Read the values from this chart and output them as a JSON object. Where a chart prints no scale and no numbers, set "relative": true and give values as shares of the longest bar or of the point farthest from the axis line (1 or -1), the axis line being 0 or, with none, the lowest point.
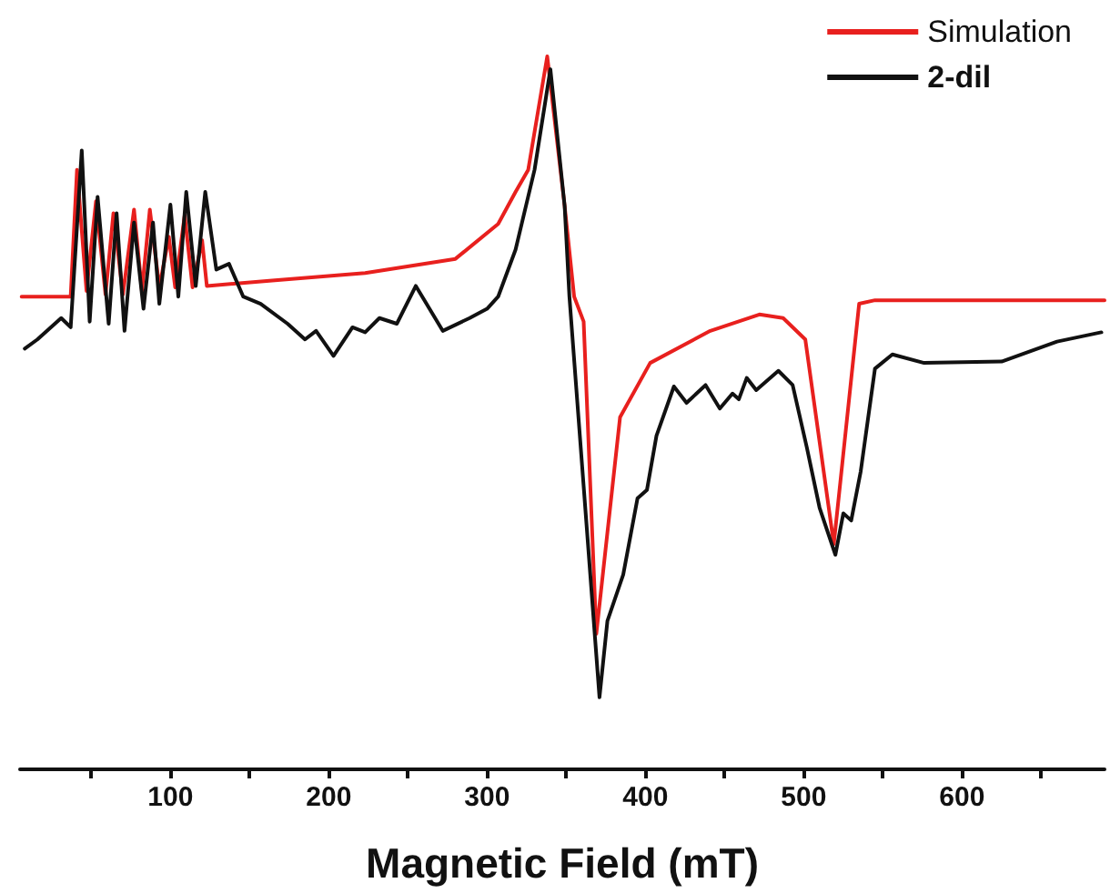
{
  "chart_data": {
    "type": "line",
    "xlabel": "Magnetic Field (mT)",
    "relative": true,
    "xlim": [
      5,
      690
    ],
    "xticks": [
      {
        "value": 50,
        "label": null
      },
      100,
      {
        "value": 150,
        "label": null
      },
      200,
      {
        "value": 250,
        "label": null
      },
      300,
      {
        "value": 350,
        "label": null
      },
      400,
      {
        "value": 450,
        "label": null
      },
      500,
      {
        "value": 550,
        "label": null
      },
      600,
      {
        "value": 650,
        "label": null
      }
    ],
    "legend": "top right",
    "grid": false,
    "marker": "none",
    "line_style": "solid",
    "tick_labels": "x",
    "series": [
      {
        "name": "Simulation",
        "color": "#e8201e",
        "x": [
          6,
          37,
          41,
          47,
          53,
          59,
          64,
          70,
          77,
          82,
          87,
          93,
          99,
          103,
          109,
          114,
          120,
          123,
          166,
          223,
          280,
          307,
          318,
          326,
          338,
          349,
          355,
          361,
          369,
          384,
          403,
          441,
          472,
          487,
          501,
          519,
          535,
          545,
          690
        ],
        "values": [
          0.663,
          0.663,
          0.841,
          0.671,
          0.797,
          0.666,
          0.78,
          0.666,
          0.785,
          0.671,
          0.785,
          0.676,
          0.747,
          0.676,
          0.777,
          0.676,
          0.742,
          0.678,
          0.686,
          0.696,
          0.716,
          0.765,
          0.81,
          0.841,
          1.0,
          0.79,
          0.663,
          0.628,
          0.19,
          0.494,
          0.57,
          0.615,
          0.638,
          0.633,
          0.603,
          0.316,
          0.653,
          0.658,
          0.658
        ]
      },
      {
        "name": "2-dil",
        "color": "#111111",
        "x": [
          8,
          16,
          31,
          37,
          44,
          49,
          54,
          61,
          66,
          71,
          77,
          83,
          89,
          93,
          100,
          105,
          110,
          116,
          122,
          129,
          137,
          146,
          157,
          174,
          185,
          192,
          203,
          215,
          223,
          232,
          243,
          255,
          272,
          289,
          300,
          307,
          318,
          330,
          340,
          349,
          352,
          361,
          371,
          376,
          386,
          395,
          401,
          407,
          418,
          426,
          438,
          447,
          455,
          459,
          464,
          470,
          484,
          493,
          502,
          510,
          520,
          525,
          530,
          536,
          545,
          556,
          576,
          625,
          660,
          688
        ],
        "values": [
          0.59,
          0.603,
          0.633,
          0.62,
          0.868,
          0.628,
          0.803,
          0.625,
          0.78,
          0.615,
          0.767,
          0.646,
          0.767,
          0.653,
          0.792,
          0.663,
          0.81,
          0.678,
          0.81,
          0.701,
          0.709,
          0.663,
          0.653,
          0.625,
          0.603,
          0.615,
          0.58,
          0.62,
          0.613,
          0.633,
          0.625,
          0.678,
          0.615,
          0.633,
          0.646,
          0.663,
          0.729,
          0.841,
          0.982,
          0.79,
          0.663,
          0.397,
          0.101,
          0.208,
          0.273,
          0.38,
          0.392,
          0.468,
          0.537,
          0.514,
          0.539,
          0.506,
          0.527,
          0.519,
          0.549,
          0.532,
          0.559,
          0.539,
          0.451,
          0.367,
          0.301,
          0.359,
          0.349,
          0.418,
          0.562,
          0.582,
          0.57,
          0.572,
          0.6,
          0.613
        ]
      }
    ]
  }
}
